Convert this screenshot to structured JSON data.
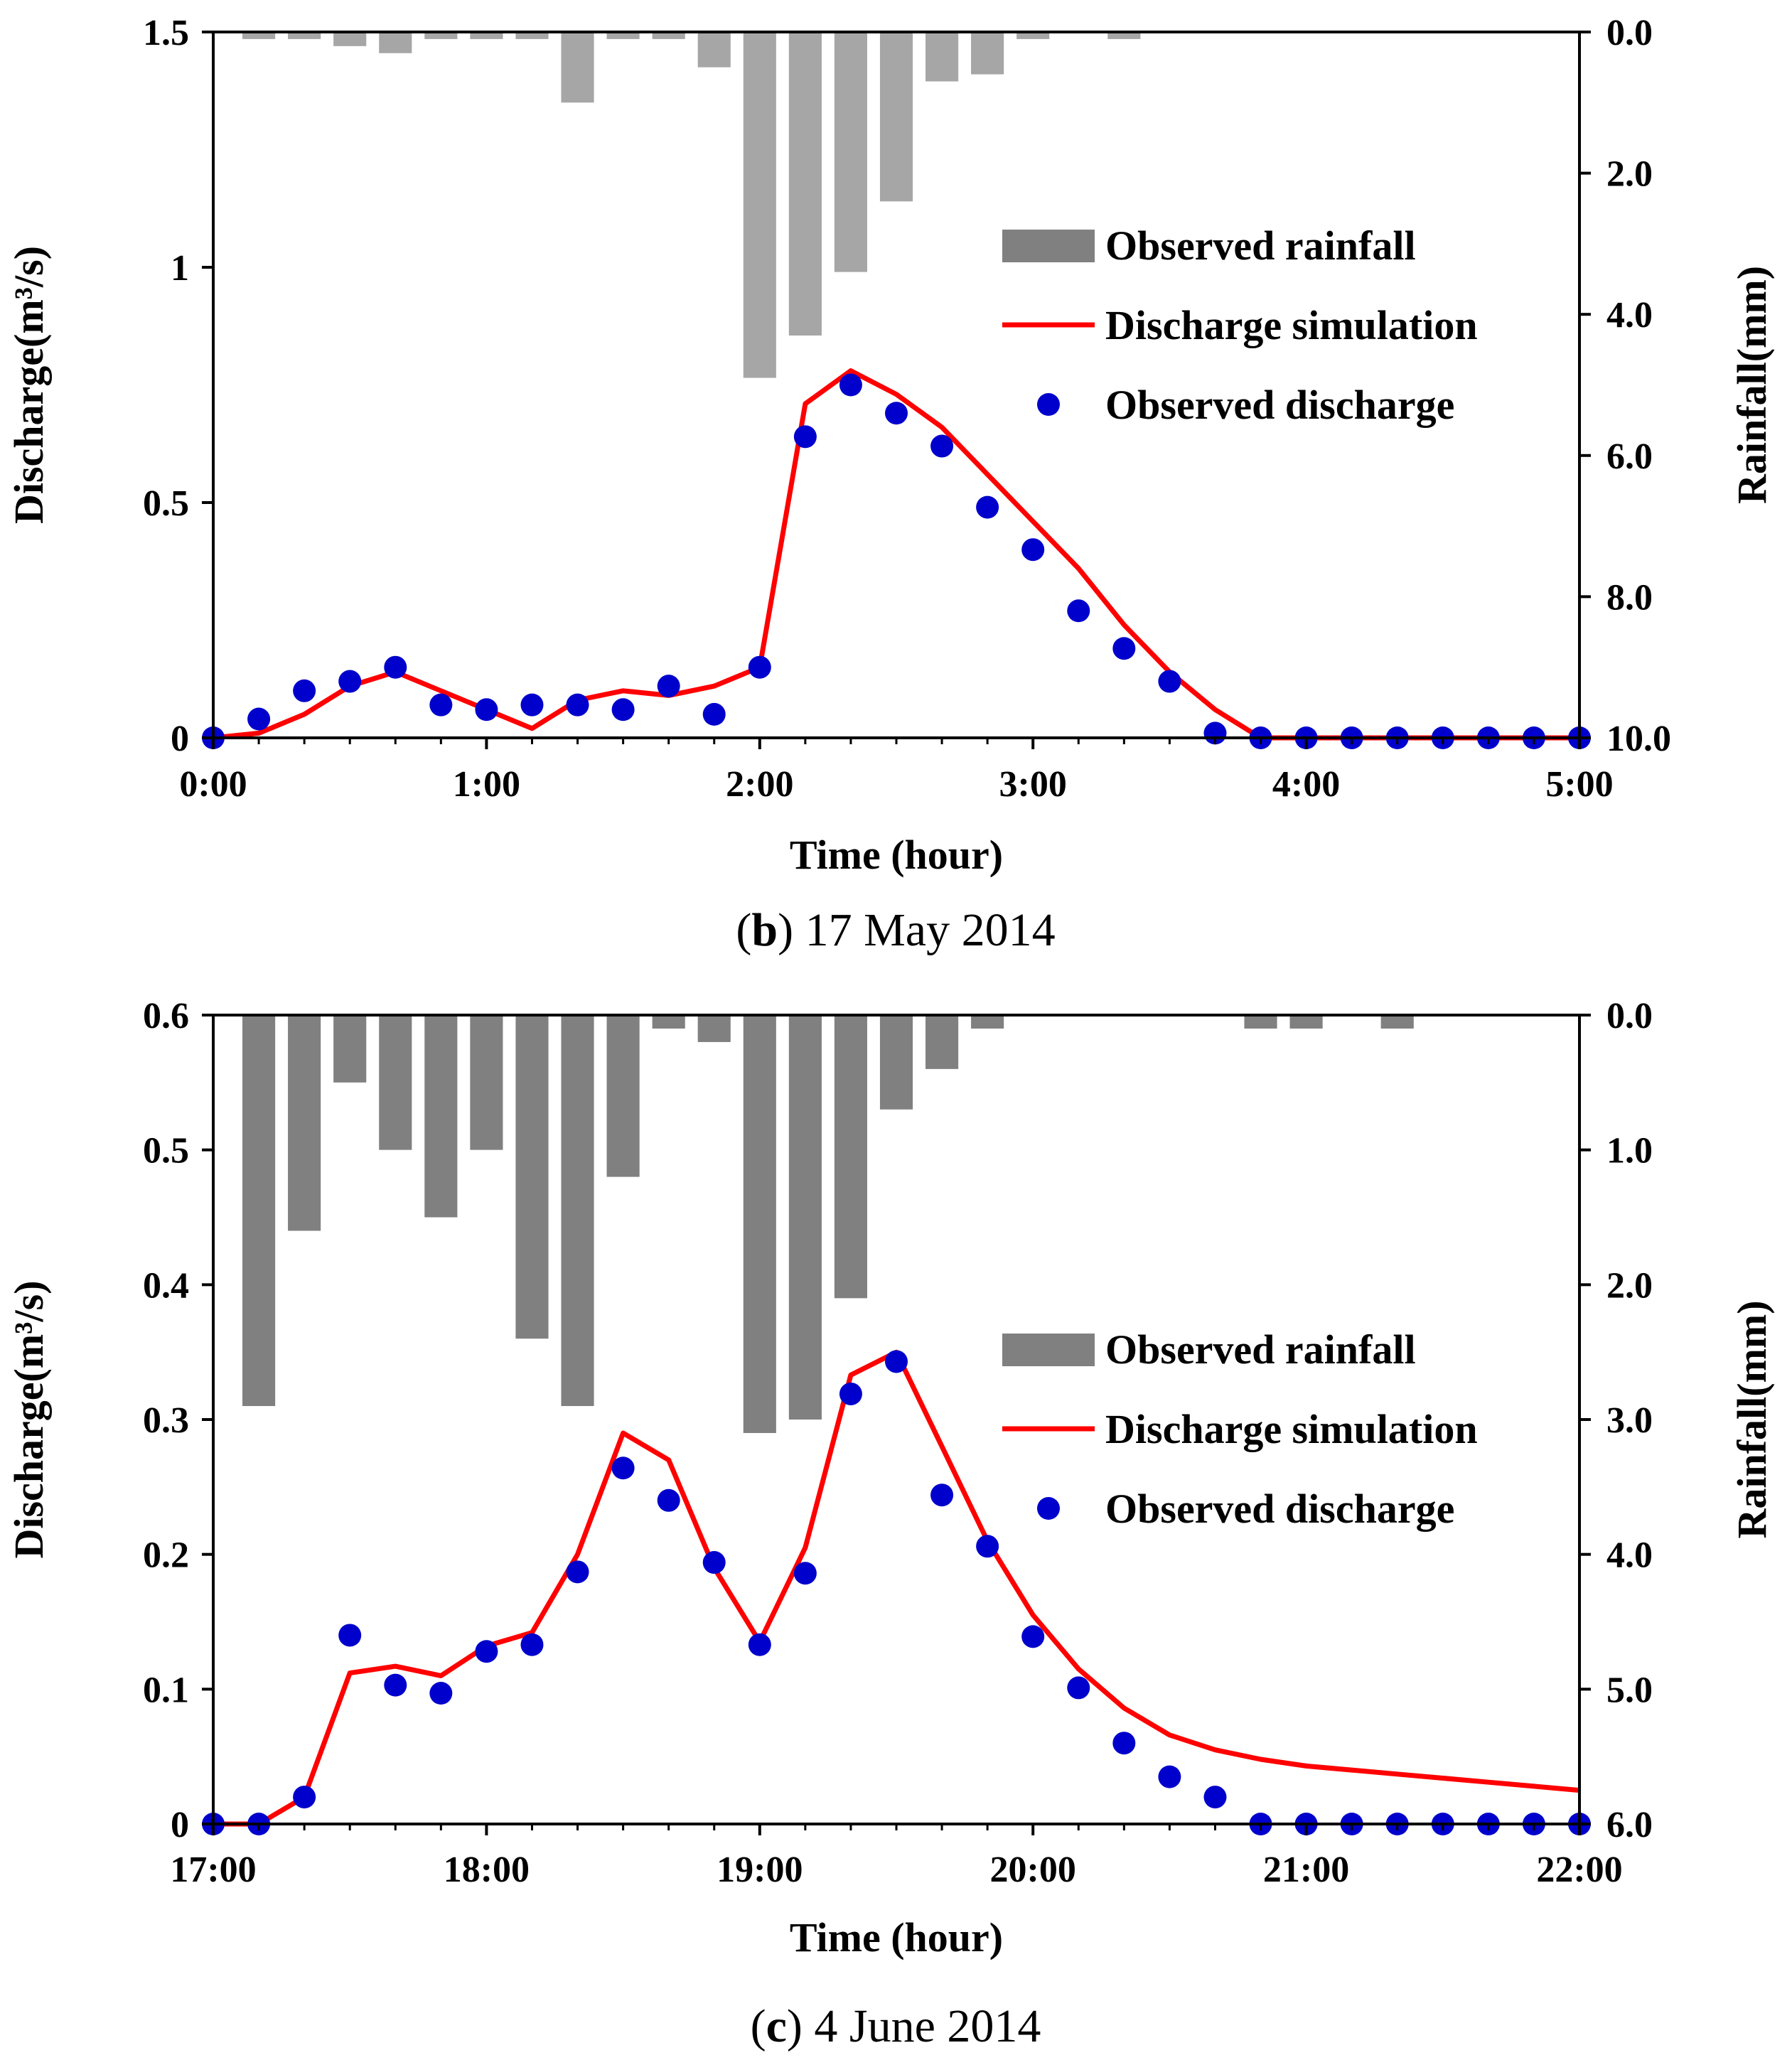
{
  "chart_data": [
    {
      "type": "bar+line+scatter",
      "caption": {
        "label": "b",
        "text": "17 May 2014"
      },
      "xlabel": "Time (hour)",
      "ylabel": "Discharge(m³/s)",
      "y2label": "Rainfall(mm)",
      "xlim": [
        0,
        5
      ],
      "ylim": [
        0,
        1.5
      ],
      "y2lim": [
        0,
        10
      ],
      "y2_inverted": true,
      "x_ticks": [
        "0:00",
        "1:00",
        "2:00",
        "3:00",
        "4:00",
        "5:00"
      ],
      "y_ticks": [
        "0",
        "0.5",
        "1",
        "1.5"
      ],
      "y2_ticks": [
        "0.0",
        "2.0",
        "4.0",
        "6.0",
        "8.0",
        "10.0"
      ],
      "bar_color": "#a6a6a6",
      "legend": {
        "position": "right",
        "items": [
          "Observed rainfall",
          "Discharge simulation",
          "Observed discharge"
        ],
        "bar_swatch": "#808080"
      },
      "rainfall_x": [
        0.1667,
        0.3333,
        0.5,
        0.6667,
        0.8333,
        1.0,
        1.1667,
        1.3333,
        1.5,
        1.6667,
        1.8333,
        2.0,
        2.1667,
        2.3333,
        2.5,
        2.6667,
        2.8333,
        3.0,
        3.3333
      ],
      "rainfall_mm": [
        0.1,
        0.1,
        0.2,
        0.3,
        0.1,
        0.1,
        0.1,
        1.0,
        0.1,
        0.1,
        0.5,
        4.9,
        4.3,
        3.4,
        2.4,
        0.7,
        0.6,
        0.1,
        0.1
      ],
      "sim_x": [
        0,
        0.1667,
        0.3333,
        0.5,
        0.6667,
        0.8333,
        1.0,
        1.1667,
        1.3333,
        1.5,
        1.6667,
        1.8333,
        2.0,
        2.1667,
        2.3333,
        2.5,
        2.6667,
        2.8333,
        3.0,
        3.1667,
        3.3333,
        3.5,
        3.6667,
        3.8333,
        4.0,
        4.1667,
        4.3333,
        4.5,
        4.6667,
        4.8333,
        5.0
      ],
      "sim_q": [
        0,
        0.01,
        0.05,
        0.11,
        0.14,
        0.1,
        0.06,
        0.02,
        0.08,
        0.1,
        0.09,
        0.11,
        0.15,
        0.71,
        0.78,
        0.73,
        0.66,
        0.56,
        0.46,
        0.36,
        0.24,
        0.14,
        0.06,
        0,
        0,
        0,
        0,
        0,
        0,
        0,
        0
      ],
      "obs_x": [
        0,
        0.1667,
        0.3333,
        0.5,
        0.6667,
        0.8333,
        1.0,
        1.1667,
        1.3333,
        1.5,
        1.6667,
        1.8333,
        2.0,
        2.1667,
        2.3333,
        2.5,
        2.6667,
        2.8333,
        3.0,
        3.1667,
        3.3333,
        3.5,
        3.6667,
        3.8333,
        4.0,
        4.1667,
        4.3333,
        4.5,
        4.6667,
        4.8333,
        5.0
      ],
      "obs_q": [
        0,
        0.04,
        0.1,
        0.12,
        0.15,
        0.07,
        0.06,
        0.07,
        0.07,
        0.06,
        0.11,
        0.05,
        0.15,
        0.64,
        0.75,
        0.69,
        0.62,
        0.49,
        0.4,
        0.27,
        0.19,
        0.12,
        0.01,
        0,
        0,
        0,
        0,
        0,
        0,
        0,
        0
      ]
    },
    {
      "type": "bar+line+scatter",
      "caption": {
        "label": "c",
        "text": "4 June 2014"
      },
      "xlabel": "Time (hour)",
      "ylabel": "Discharge(m³/s)",
      "y2label": "Rainfall(mm)",
      "xlim": [
        17,
        22
      ],
      "ylim": [
        0,
        0.6
      ],
      "y2lim": [
        0,
        6
      ],
      "y2_inverted": true,
      "x_ticks": [
        "17:00",
        "18:00",
        "19:00",
        "20:00",
        "21:00",
        "22:00"
      ],
      "y_ticks": [
        "0",
        "0.1",
        "0.2",
        "0.3",
        "0.4",
        "0.5",
        "0.6"
      ],
      "y2_ticks": [
        "0.0",
        "1.0",
        "2.0",
        "3.0",
        "4.0",
        "5.0",
        "6.0"
      ],
      "bar_color": "#808080",
      "legend": {
        "position": "right",
        "items": [
          "Observed rainfall",
          "Discharge simulation",
          "Observed discharge"
        ],
        "bar_swatch": "#808080"
      },
      "rainfall_x": [
        17.1667,
        17.3333,
        17.5,
        17.6667,
        17.8333,
        18.0,
        18.1667,
        18.3333,
        18.5,
        18.6667,
        18.8333,
        19.0,
        19.1667,
        19.3333,
        19.5,
        19.6667,
        19.8333,
        20.8333,
        21.0,
        21.3333
      ],
      "rainfall_mm": [
        2.9,
        1.6,
        0.5,
        1.0,
        1.5,
        1.0,
        2.4,
        2.9,
        1.2,
        0.1,
        0.2,
        3.1,
        3.0,
        2.1,
        0.7,
        0.4,
        0.1,
        0.1,
        0.1,
        0.1
      ],
      "sim_x": [
        17.0,
        17.1667,
        17.3333,
        17.5,
        17.6667,
        17.8333,
        18.0,
        18.1667,
        18.3333,
        18.5,
        18.6667,
        18.8333,
        19.0,
        19.1667,
        19.3333,
        19.5,
        19.6667,
        19.8333,
        20.0,
        20.1667,
        20.3333,
        20.5,
        20.6667,
        20.8333,
        21.0,
        21.1667,
        21.3333,
        21.5,
        21.6667,
        21.8333,
        22.0
      ],
      "sim_q": [
        0,
        0,
        0.02,
        0.112,
        0.117,
        0.11,
        0.132,
        0.142,
        0.2,
        0.29,
        0.27,
        0.19,
        0.135,
        0.205,
        0.333,
        0.35,
        0.28,
        0.21,
        0.155,
        0.115,
        0.086,
        0.066,
        0.055,
        0.048,
        0.043,
        0.04,
        0.037,
        0.034,
        0.031,
        0.028,
        0.025
      ],
      "obs_x": [
        17.0,
        17.1667,
        17.3333,
        17.5,
        17.6667,
        17.8333,
        18.0,
        18.1667,
        18.3333,
        18.5,
        18.6667,
        18.8333,
        19.0,
        19.1667,
        19.3333,
        19.5,
        19.6667,
        19.8333,
        20.0,
        20.1667,
        20.3333,
        20.5,
        20.6667,
        20.8333,
        21.0,
        21.1667,
        21.3333,
        21.5,
        21.6667,
        21.8333,
        22.0
      ],
      "obs_q": [
        0,
        0,
        0.02,
        0.14,
        0.103,
        0.097,
        0.128,
        0.133,
        0.187,
        0.264,
        0.24,
        0.194,
        0.133,
        0.186,
        0.319,
        0.343,
        0.244,
        0.206,
        0.139,
        0.101,
        0.06,
        0.035,
        0.02,
        0,
        0,
        0,
        0,
        0,
        0,
        0,
        0
      ]
    }
  ]
}
